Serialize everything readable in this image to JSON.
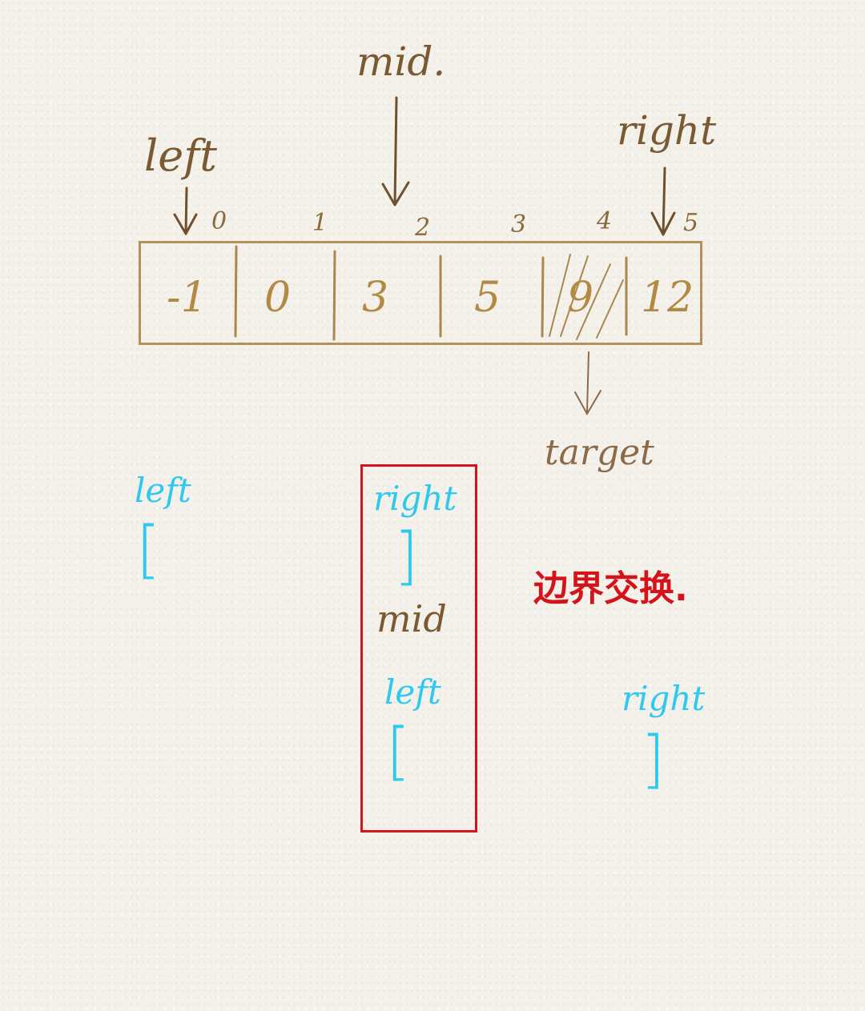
{
  "array": {
    "indices": [
      "0",
      "1",
      "2",
      "3",
      "4",
      "5"
    ],
    "values": [
      "-1",
      "0",
      "3",
      "5",
      "9",
      "12"
    ]
  },
  "pointers": {
    "left": "left",
    "mid": "mid.",
    "right": "right"
  },
  "target_label": "target",
  "interval_1": {
    "left_label": "left",
    "left_bracket": "[",
    "right_label": "right",
    "right_bracket": "]"
  },
  "mid_label": "mid",
  "interval_2": {
    "left_label": "left",
    "left_bracket": "[",
    "right_label": "right",
    "right_bracket": "]"
  },
  "note": "边界交换.",
  "colors": {
    "pencil_brown": "#7a5a33",
    "array_gold": "#b3915a",
    "interval_cyan": "#2ec9ef",
    "highlight_red": "#d4131a"
  }
}
